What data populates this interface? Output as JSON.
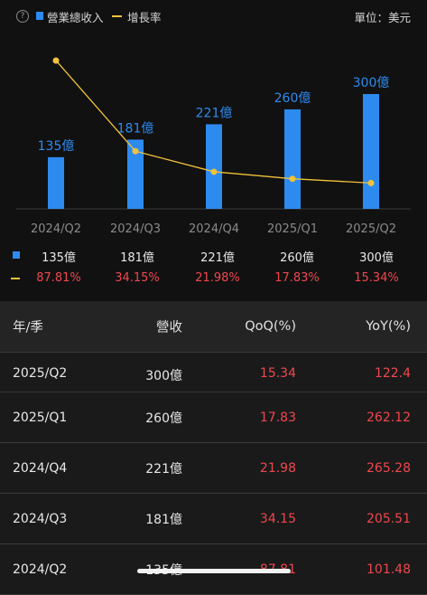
{
  "legend": {
    "help": "?",
    "revenue": "營業總收入",
    "growth": "增長率",
    "unit": "單位：美元"
  },
  "colors": {
    "bar": "#2d8bf0",
    "line": "#f2c23a",
    "negative_red": "#f0474f"
  },
  "chart_data": {
    "type": "bar",
    "categories": [
      "2024/Q2",
      "2024/Q3",
      "2024/Q4",
      "2025/Q1",
      "2025/Q2"
    ],
    "series": [
      {
        "name": "營業總收入",
        "type": "bar",
        "values": [
          135,
          181,
          221,
          260,
          300
        ],
        "labels": [
          "135億",
          "181億",
          "221億",
          "260億",
          "300億"
        ]
      },
      {
        "name": "增長率",
        "type": "line",
        "values": [
          87.81,
          34.15,
          21.98,
          17.83,
          15.34
        ]
      }
    ]
  },
  "summary": {
    "revenue": [
      "135億",
      "181億",
      "221億",
      "260億",
      "300億"
    ],
    "growth": [
      "87.81%",
      "34.15%",
      "21.98%",
      "17.83%",
      "15.34%"
    ]
  },
  "table": {
    "headers": {
      "period": "年/季",
      "revenue": "營收",
      "qoq": "QoQ(%)",
      "yoy": "YoY(%)"
    },
    "rows": [
      {
        "period": "2025/Q2",
        "revenue": "300億",
        "qoq": "15.34",
        "yoy": "122.4"
      },
      {
        "period": "2025/Q1",
        "revenue": "260億",
        "qoq": "17.83",
        "yoy": "262.12"
      },
      {
        "period": "2024/Q4",
        "revenue": "221億",
        "qoq": "21.98",
        "yoy": "265.28"
      },
      {
        "period": "2024/Q3",
        "revenue": "181億",
        "qoq": "34.15",
        "yoy": "205.51"
      },
      {
        "period": "2024/Q2",
        "revenue": "135億",
        "qoq": "87.81",
        "yoy": "101.48"
      }
    ]
  }
}
